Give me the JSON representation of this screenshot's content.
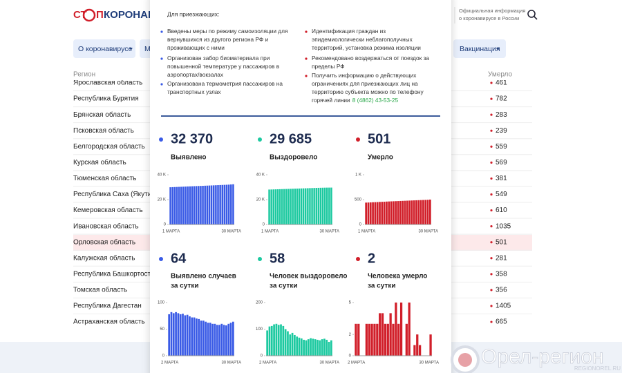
{
  "header": {
    "logo": [
      "СТ",
      "П",
      "КОРОНАВИ"
    ],
    "info": [
      "Официальная информация",
      "о коронавирусе в России"
    ]
  },
  "nav": [
    "О коронавирусе",
    "М",
    "Вакцинация"
  ],
  "table": {
    "columns": [
      "Регион",
      "Умерло"
    ],
    "rows": [
      [
        "Ярославская область",
        461
      ],
      [
        "Республика Бурятия",
        782
      ],
      [
        "Брянская область",
        283
      ],
      [
        "Псковская область",
        239
      ],
      [
        "Белгородская область",
        559
      ],
      [
        "Курская область",
        569
      ],
      [
        "Тюменская область",
        381
      ],
      [
        "Республика Саха (Якутия)",
        549
      ],
      [
        "Кемеровская область",
        610
      ],
      [
        "Ивановская область",
        1035
      ],
      [
        "Орловская область",
        501
      ],
      [
        "Калужская область",
        281
      ],
      [
        "Республика Башкортостан",
        358
      ],
      [
        "Томская область",
        356
      ],
      [
        "Республика Дагестан",
        1405
      ],
      [
        "Астраханская область",
        665
      ]
    ]
  },
  "popup": {
    "title": "Для приезжающих:",
    "left": [
      {
        "lines": [
          "Введены меры по режиму самоизоляции для",
          "вернувшихся из другого региона РФ и",
          "проживающих с ними"
        ]
      },
      {
        "lines": [
          "Организован забор биоматериала при",
          "повышенной температуре у пассажиров в",
          "аэропортах/вокзалах"
        ]
      },
      {
        "lines": [
          "Организована термометрия пассажиров на",
          "транспортных узлах"
        ]
      }
    ],
    "right": [
      {
        "lines": [
          "Идентификация граждан из",
          "эпидемиологически неблагополучных",
          "территорий, установка режима изоляции"
        ]
      },
      {
        "lines": [
          "Рекомендовано воздержаться от поездок за",
          "пределы РФ"
        ]
      },
      {
        "lines": [
          "Получить информацию о действующих",
          "ограничениях для приезжающих лиц на",
          "территорию субъекта можно по телефону",
          "горячей линии"
        ],
        "phone": "8 (4862) 43-53-25"
      }
    ],
    "stats": [
      {
        "value": "32 370",
        "label": [
          "Выявлено"
        ],
        "color": "#3a5be6",
        "chart": {
          "ylim": [
            0,
            40000
          ],
          "yticks": [
            0,
            {
              "value": 20000,
              "label": "20 K"
            },
            {
              "value": 40000,
              "label": "40 K"
            }
          ],
          "x_labels": [
            "1 МАРТА",
            "30 МАРТА"
          ],
          "values": [
            29950,
            30040,
            30120,
            30200,
            30280,
            30350,
            30430,
            30510,
            30590,
            30660,
            30740,
            30820,
            30890,
            30960,
            31040,
            31110,
            31190,
            31260,
            31340,
            31410,
            31480,
            31560,
            31640,
            31720,
            31800,
            31880,
            31960,
            32060,
            32200,
            32370
          ]
        }
      },
      {
        "value": "29 685",
        "label": [
          "Выздоровело"
        ],
        "color": "#1cc9a0",
        "chart": {
          "ylim": [
            0,
            40000
          ],
          "yticks": [
            0,
            {
              "value": 20000,
              "label": "20 K"
            },
            {
              "value": 40000,
              "label": "40 K"
            }
          ],
          "x_labels": [
            "1 МАРТА",
            "30 МАРТА"
          ],
          "values": [
            28100,
            28160,
            28220,
            28280,
            28340,
            28400,
            28460,
            28520,
            28580,
            28640,
            28700,
            28760,
            28820,
            28880,
            28940,
            29000,
            29060,
            29120,
            29180,
            29240,
            29300,
            29360,
            29420,
            29480,
            29530,
            29580,
            29620,
            29650,
            29670,
            29685
          ]
        }
      },
      {
        "value": "501",
        "label": [
          "Умерло"
        ],
        "color": "#d11f2a",
        "chart": {
          "ylim": [
            0,
            1000
          ],
          "yticks": [
            0,
            500,
            {
              "value": 1000,
              "label": "1 K"
            }
          ],
          "x_labels": [
            "1 МАРТА",
            "30 МАРТА"
          ],
          "values": [
            440,
            442,
            444,
            447,
            449,
            451,
            454,
            456,
            458,
            461,
            463,
            465,
            467,
            469,
            471,
            473,
            475,
            477,
            479,
            481,
            483,
            485,
            487,
            489,
            491,
            493,
            495,
            497,
            501
          ]
        }
      },
      {
        "value": "64",
        "label": [
          "Выявлено случаев",
          "за сутки"
        ],
        "color": "#3a5be6",
        "chart": {
          "ylim": [
            0,
            100
          ],
          "yticks": [
            0,
            50,
            100
          ],
          "x_labels": [
            "2 МАРТА",
            "30 МАРТА"
          ],
          "values": [
            78,
            82,
            80,
            82,
            80,
            78,
            79,
            76,
            77,
            74,
            72,
            72,
            70,
            69,
            66,
            66,
            64,
            62,
            62,
            60,
            60,
            58,
            58,
            60,
            58,
            57,
            60,
            62,
            64
          ]
        }
      },
      {
        "value": "58",
        "label": [
          "Человек выздоровело",
          "за сутки"
        ],
        "color": "#1cc9a0",
        "chart": {
          "ylim": [
            0,
            200
          ],
          "yticks": [
            0,
            100,
            200
          ],
          "x_labels": [
            "2 МАРТА",
            "30 МАРТА"
          ],
          "values": [
            95,
            110,
            112,
            118,
            120,
            116,
            118,
            112,
            100,
            92,
            80,
            86,
            78,
            72,
            68,
            65,
            60,
            58,
            62,
            66,
            64,
            62,
            60,
            58,
            62,
            64,
            60,
            52,
            58
          ]
        }
      },
      {
        "value": "2",
        "label": [
          "Человека умерло",
          "за сутки"
        ],
        "color": "#d11f2a",
        "chart": {
          "ylim": [
            0,
            5
          ],
          "yticks": [
            0,
            2,
            5
          ],
          "x_labels": [
            "2 МАРТА",
            "30 МАРТА"
          ],
          "values": [
            3,
            3,
            0,
            0,
            3,
            3,
            3,
            3,
            3,
            4,
            4,
            3,
            3,
            4,
            3,
            5,
            3,
            5,
            0,
            3,
            5,
            0,
            1,
            2,
            1,
            0,
            0,
            0,
            2
          ]
        }
      }
    ]
  },
  "watermark": {
    "name": "Орел-регион",
    "url": "REGIONOREL.RU"
  }
}
